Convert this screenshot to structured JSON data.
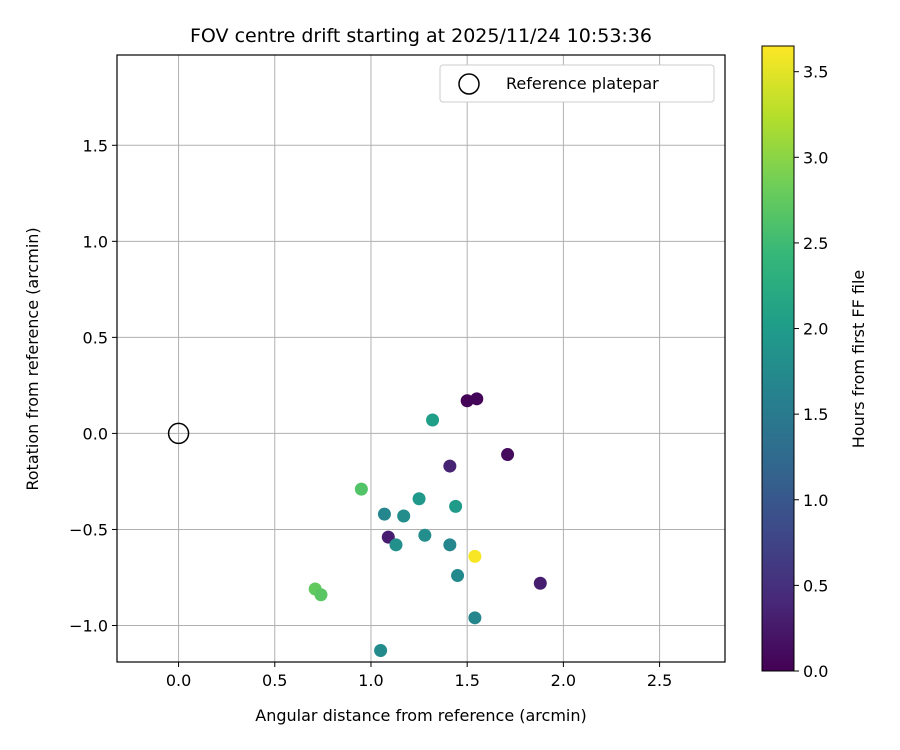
{
  "chart_data": {
    "type": "scatter",
    "title": "FOV centre drift starting at 2025/11/24 10:53:36",
    "xlabel": "Angular distance from reference (arcmin)",
    "ylabel": "Rotation from reference (arcmin)",
    "xlim": [
      -0.32,
      2.84
    ],
    "ylim": [
      -1.19,
      1.97
    ],
    "xticks": [
      "0.0",
      "0.5",
      "1.0",
      "1.5",
      "2.0",
      "2.5"
    ],
    "xtick_values": [
      0.0,
      0.5,
      1.0,
      1.5,
      2.0,
      2.5
    ],
    "yticks": [
      "−1.0",
      "−0.5",
      "0.0",
      "0.5",
      "1.0",
      "1.5"
    ],
    "ytick_values": [
      -1.0,
      -0.5,
      0.0,
      0.5,
      1.0,
      1.5
    ],
    "grid": true,
    "legend": {
      "position": "upper right",
      "entries": [
        {
          "label": "Reference platepar",
          "marker": "open-circle"
        }
      ]
    },
    "reference_point": {
      "x": 0.0,
      "y": 0.0
    },
    "colormap": "viridis",
    "colorbar": {
      "label": "Hours from first FF file",
      "range": [
        0.0,
        3.65
      ],
      "ticks": [
        "0.0",
        "0.5",
        "1.0",
        "1.5",
        "2.0",
        "2.5",
        "3.0",
        "3.5"
      ],
      "tick_values": [
        0.0,
        0.5,
        1.0,
        1.5,
        2.0,
        2.5,
        3.0,
        3.5
      ]
    },
    "points": [
      {
        "x": 1.5,
        "y": 0.17,
        "hours": 0.02
      },
      {
        "x": 1.55,
        "y": 0.18,
        "hours": 0.05
      },
      {
        "x": 1.71,
        "y": -0.11,
        "hours": 0.1
      },
      {
        "x": 1.41,
        "y": -0.17,
        "hours": 0.35
      },
      {
        "x": 1.88,
        "y": -0.78,
        "hours": 0.3
      },
      {
        "x": 1.09,
        "y": -0.54,
        "hours": 0.3
      },
      {
        "x": 1.05,
        "y": -1.13,
        "hours": 1.75
      },
      {
        "x": 1.54,
        "y": -0.96,
        "hours": 1.7
      },
      {
        "x": 1.45,
        "y": -0.74,
        "hours": 1.72
      },
      {
        "x": 1.13,
        "y": -0.58,
        "hours": 1.82
      },
      {
        "x": 1.07,
        "y": -0.42,
        "hours": 1.68
      },
      {
        "x": 1.17,
        "y": -0.43,
        "hours": 1.78
      },
      {
        "x": 1.28,
        "y": -0.53,
        "hours": 1.8
      },
      {
        "x": 1.41,
        "y": -0.58,
        "hours": 1.7
      },
      {
        "x": 1.25,
        "y": -0.34,
        "hours": 1.95
      },
      {
        "x": 1.44,
        "y": -0.38,
        "hours": 1.98
      },
      {
        "x": 1.32,
        "y": 0.07,
        "hours": 2.05
      },
      {
        "x": 0.95,
        "y": -0.29,
        "hours": 2.65
      },
      {
        "x": 0.71,
        "y": -0.81,
        "hours": 2.75
      },
      {
        "x": 0.74,
        "y": -0.84,
        "hours": 2.7
      },
      {
        "x": 1.54,
        "y": -0.64,
        "hours": 3.62
      }
    ]
  }
}
